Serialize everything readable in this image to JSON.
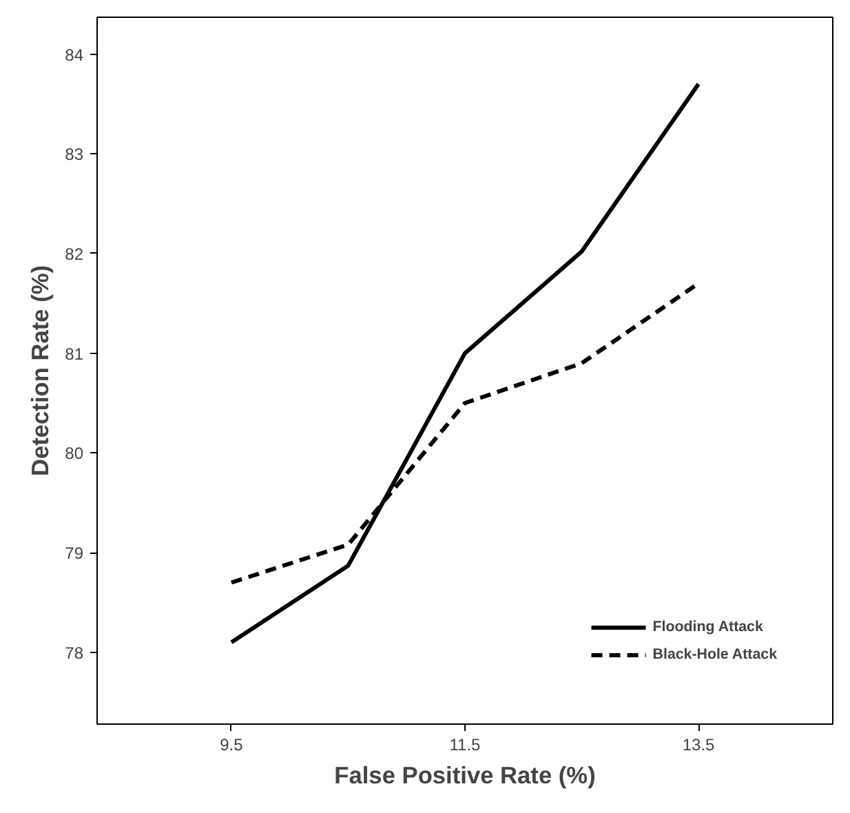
{
  "chart_data": {
    "type": "line",
    "xlabel": "False Positive Rate (%)",
    "ylabel": "Detection Rate (%)",
    "x": [
      9.5,
      10.5,
      11.5,
      12.5,
      13.5
    ],
    "series": [
      {
        "name": "Flooding Attack",
        "color": "#000000",
        "line_style": "solid",
        "values": [
          78.1,
          78.87,
          81.0,
          82.02,
          83.7
        ]
      },
      {
        "name": "Black-Hole Attack",
        "color": "#000000",
        "line_style": "dashed",
        "values": [
          78.7,
          79.08,
          80.5,
          80.9,
          81.7
        ]
      }
    ],
    "xlim": [
      8.35,
      14.65
    ],
    "xticks": [
      9.5,
      11.5,
      13.5
    ],
    "ylim": [
      77.28,
      84.37
    ],
    "yticks": [
      78,
      79,
      80,
      81,
      82,
      83,
      84
    ],
    "grid": false,
    "legend": "bottom right",
    "marker": "none"
  }
}
